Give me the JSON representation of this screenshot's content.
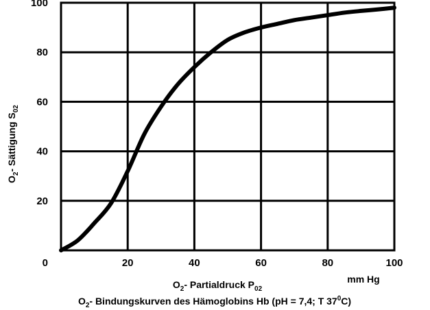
{
  "chart_data": {
    "type": "line",
    "x_ticks": [
      0,
      20,
      40,
      60,
      80,
      100
    ],
    "y_ticks": [
      20,
      40,
      60,
      80,
      100
    ],
    "y_zero_label": "0",
    "xlim": [
      0,
      100
    ],
    "ylim": [
      0,
      100
    ],
    "grid": true,
    "xunit": "mm Hg",
    "ylabel": {
      "main": "O",
      "sub": "2",
      "text": "- Sättigung  S",
      "sub2": "02"
    },
    "xlabel": {
      "main": "O",
      "sub": "2",
      "text": "- Partialdruck  P",
      "sub2": "02"
    },
    "caption": {
      "main": "O",
      "sub": "2",
      "text": "- Bindungskurven des Hämoglobins Hb (pH = 7,4; T 37",
      "sup": "0",
      "tail": "C)"
    },
    "series": [
      {
        "color": "#000000",
        "x": [
          0,
          5,
          10,
          15,
          20,
          25,
          30,
          35,
          40,
          45,
          50,
          55,
          60,
          65,
          70,
          75,
          80,
          85,
          90,
          95,
          100
        ],
        "y": [
          0,
          4,
          11,
          19,
          32,
          47,
          58,
          67,
          74,
          80,
          85,
          88,
          90,
          91.5,
          93,
          94,
          95,
          96,
          96.7,
          97.3,
          98
        ]
      }
    ]
  }
}
